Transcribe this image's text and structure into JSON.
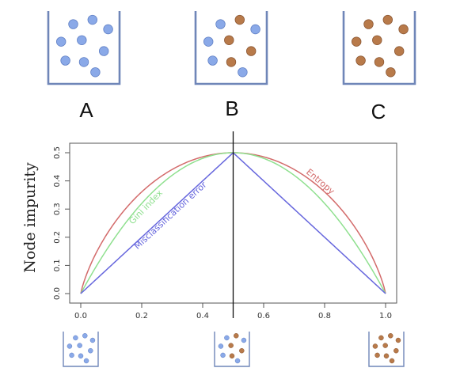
{
  "containers": [
    {
      "label": "A",
      "blue": 9,
      "brown": 0
    },
    {
      "label": "B",
      "blue": 5,
      "brown": 4
    },
    {
      "label": "C",
      "blue": 0,
      "brown": 9
    }
  ],
  "colors": {
    "blue": "#8aa9e8",
    "blue_edge": "#5f7fc4",
    "brown": "#b87a4a",
    "brown_edge": "#8a5632",
    "container": "#6f86b8",
    "entropy": "#d36b6b",
    "gini": "#8fe08f",
    "misclassification": "#6666dd"
  },
  "chart_data": {
    "type": "line",
    "xlabel": "",
    "ylabel": "Node impurity",
    "xlim": [
      0.0,
      1.0
    ],
    "ylim": [
      0.0,
      0.5
    ],
    "xticks": [
      "0.0",
      "0.2",
      "0.4",
      "0.6",
      "0.8",
      "1.0"
    ],
    "yticks": [
      "0.0",
      "0.1",
      "0.2",
      "0.3",
      "0.4",
      "0.5"
    ],
    "vertical_line_x": 0.5,
    "series": [
      {
        "name": "Entropy",
        "formula": "entropy_half",
        "color": "#d36b6b",
        "label_pos": {
          "x": 0.78,
          "y": 0.39
        }
      },
      {
        "name": "Gini index",
        "formula": "gini",
        "color": "#8fe08f",
        "label_pos": {
          "x": 0.22,
          "y": 0.3
        }
      },
      {
        "name": "Misclassification error",
        "formula": "misclass",
        "color": "#6666dd",
        "label_pos": {
          "x": 0.3,
          "y": 0.27
        }
      }
    ],
    "bottom_icons": [
      {
        "x": 0.0,
        "blue": 9,
        "brown": 0
      },
      {
        "x": 0.5,
        "blue": 5,
        "brown": 4
      },
      {
        "x": 1.0,
        "blue": 0,
        "brown": 9
      }
    ]
  }
}
